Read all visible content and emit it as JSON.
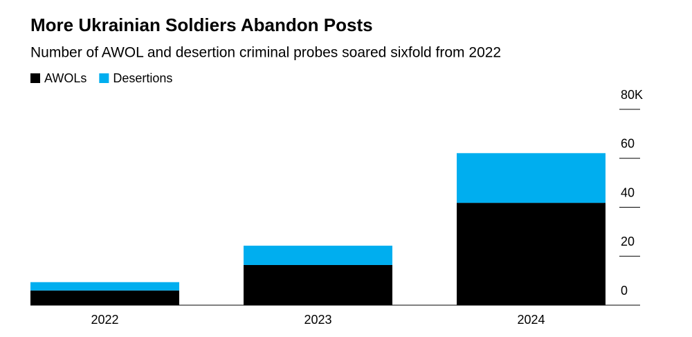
{
  "chart_data": {
    "type": "stacked_bar",
    "title": "More Ukrainian Soldiers Abandon Posts",
    "subtitle": "Number of AWOL and desertion criminal probes soared sixfold from 2022",
    "categories": [
      "2022",
      "2023",
      "2024"
    ],
    "series": [
      {
        "name": "AWOLs",
        "color": "#000000",
        "values": [
          6,
          16.4,
          41.8
        ]
      },
      {
        "name": "Desertions",
        "color": "#00aeef",
        "values": [
          3.4,
          7.9,
          20.3
        ]
      }
    ],
    "ylim": [
      0,
      80
    ],
    "yticks": [
      0,
      20,
      40,
      60,
      {
        "value": 80,
        "label": "80K"
      }
    ],
    "legend": "top-left"
  }
}
